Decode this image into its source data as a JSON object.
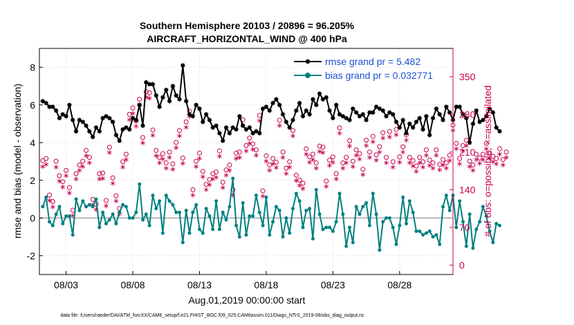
{
  "chart_data": {
    "type": "line",
    "title": "Southern Hemisphere 20103 / 20896 = 96.205%",
    "subtitle": "AIRCRAFT_HORIZONTAL_WIND @ 400 hPa",
    "xlabel": "Aug.01,2019 00:00:00 start",
    "ylabel": "rmse and bias (model - observation)",
    "y2label": "# of obs: o=possible; ×=assimilated",
    "footnote": "data file: /Users/raeder/DAI/ATM_forcXX/CAM6_setup/f.e21.FHIST_BGC.f09_025.CAM6assim.011/Diags_NTrS_2019-08/obs_diag_output.nc",
    "xlim": [
      1,
      32
    ],
    "xticks": [
      {
        "day": 3,
        "label": "08/03"
      },
      {
        "day": 8,
        "label": "08/08"
      },
      {
        "day": 13,
        "label": "08/13"
      },
      {
        "day": 18,
        "label": "08/18"
      },
      {
        "day": 23,
        "label": "08/23"
      },
      {
        "day": 28,
        "label": "08/28"
      }
    ],
    "ylim": [
      -3,
      9
    ],
    "yticks": [
      -2,
      0,
      2,
      4,
      6,
      8
    ],
    "y2lim": [
      -17.5,
      402.5
    ],
    "y2ticks": [
      0,
      70,
      140,
      210,
      280,
      350
    ],
    "legend": {
      "position": "top-right"
    },
    "x_start_day": 1.25,
    "x_step_days": 0.25,
    "series": [
      {
        "name": "rmse grand pr = 5.482",
        "color": "#000000",
        "values": [
          6.2,
          6.1,
          5.9,
          5.9,
          5.7,
          5.3,
          5.5,
          5.4,
          6.0,
          5.2,
          4.6,
          5.2,
          5.1,
          4.9,
          4.6,
          4.3,
          4.8,
          4.6,
          5.3,
          5.4,
          5.3,
          5.1,
          4.4,
          4.1,
          4.7,
          4.8,
          4.7,
          5.3,
          5.2,
          6.0,
          4.9,
          7.2,
          7.1,
          7.1,
          6.5,
          5.9,
          6.4,
          6.8,
          6.2,
          7.0,
          6.5,
          6.3,
          8.1,
          6.2,
          5.5,
          5.4,
          6.0,
          5.8,
          5.1,
          5.5,
          5.2,
          4.8,
          4.9,
          4.5,
          4.1,
          4.8,
          4.5,
          4.8,
          4.7,
          5.4,
          4.9,
          4.7,
          4.8,
          4.5,
          4.6,
          4.5,
          5.8,
          5.9,
          5.7,
          6.1,
          6.3,
          6.0,
          5.5,
          5.1,
          4.8,
          5.2,
          5.7,
          6.1,
          5.4,
          5.7,
          5.5,
          6.3,
          6.0,
          6.6,
          6.3,
          6.4,
          5.7,
          5.3,
          6.0,
          5.5,
          5.4,
          5.3,
          5.2,
          5.8,
          5.6,
          5.4,
          5.5,
          5.2,
          5.6,
          5.6,
          5.9,
          5.8,
          5.7,
          5.4,
          5.6,
          5.5,
          5.1,
          4.8,
          5.2,
          4.5,
          5.0,
          4.8,
          5.1,
          5.3,
          4.7,
          5.4,
          4.4,
          5.3,
          5.8,
          5.5,
          5.2,
          5.9,
          5.6,
          5.2,
          5.9,
          5.9,
          5.5,
          5.3,
          4.0,
          5.0,
          5.7,
          5.1,
          5.2,
          5.4,
          5.8,
          5.6,
          4.8,
          4.6
        ]
      },
      {
        "name": "bias grand pr = 0.032771",
        "color": "#008080",
        "values": [
          0.6,
          1.1,
          -0.2,
          -0.4,
          0.2,
          0.6,
          -0.3,
          0.1,
          0.1,
          -0.9,
          1.0,
          0.4,
          0.9,
          0.6,
          0.7,
          0.6,
          1.0,
          -0.5,
          0.3,
          -0.3,
          -0.1,
          0.2,
          -0.3,
          0.3,
          0.7,
          0.6,
          0.0,
          0.0,
          0.3,
          1.8,
          -0.1,
          0.2,
          -0.4,
          1.2,
          0.5,
          0.9,
          -0.8,
          1.2,
          0.9,
          0.7,
          0.3,
          0.3,
          -1.3,
          0.4,
          -0.8,
          0.3,
          0.7,
          -0.6,
          -0.8,
          0.5,
          0.1,
          -0.6,
          0.9,
          -0.6,
          0.3,
          -0.1,
          0.6,
          2.1,
          -0.4,
          -1.0,
          0.8,
          -0.9,
          0.1,
          0.1,
          1.2,
          0.3,
          -0.4,
          1.1,
          -0.9,
          -0.2,
          0.6,
          0.4,
          -1.0,
          0.0,
          -0.8,
          0.5,
          1.3,
          0.9,
          -0.5,
          0.4,
          0.5,
          -1.1,
          1.5,
          0.2,
          -0.6,
          -0.5,
          -0.5,
          -0.7,
          -0.2,
          1.3,
          0.2,
          -1.5,
          -0.5,
          -1.3,
          0.6,
          0.2,
          0.6,
          0.8,
          -0.4,
          1.3,
          0.2,
          -1.7,
          -0.2,
          0.0,
          0.0,
          -0.5,
          -1.4,
          -0.4,
          1.1,
          -0.3,
          0.9,
          0.3,
          -0.7,
          -0.7,
          -0.9,
          -0.8,
          -0.7,
          -1.0,
          -0.9,
          -1.4,
          0.6,
          1.2,
          0.4,
          1.2,
          -0.5,
          0.9,
          -0.2,
          -1.5,
          0.2,
          -1.6,
          -0.6,
          -0.2,
          0.6,
          0.1,
          -0.7,
          -1.3,
          -0.3,
          -0.4
        ]
      },
      {
        "name": "possible",
        "color": "#c8004f",
        "marker": "circle",
        "axis": "right",
        "values": [
          194,
          198,
          130,
          118,
          193,
          166,
          155,
          176,
          144,
          102,
          170,
          186,
          193,
          213,
          200,
          122,
          113,
          170,
          171,
          120,
          219,
          162,
          129,
          105,
          192,
          206,
          280,
          292,
          268,
          308,
          237,
          322,
          320,
          251,
          213,
          200,
          207,
          190,
          210,
          188,
          228,
          250,
          199,
          266,
          286,
          140,
          193,
          208,
          174,
          150,
          159,
          170,
          173,
          212,
          154,
          177,
          186,
          140,
          208,
          210,
          270,
          222,
          236,
          225,
          214,
          278,
          138,
          203,
          186,
          198,
          191,
          269,
          210,
          180,
          192,
          250,
          167,
          158,
          152,
          216,
          201,
          206,
          190,
          221,
          219,
          156,
          195,
          201,
          170,
          255,
          190,
          200,
          231,
          193,
          214,
          207,
          178,
          232,
          210,
          239,
          205,
          220,
          246,
          200,
          248,
          192,
          252,
          201,
          220,
          242,
          200,
          194,
          184,
          200,
          192,
          214,
          195,
          190,
          214,
          187,
          196,
          190,
          204,
          260,
          226,
          198,
          222,
          232,
          193,
          186,
          206,
          199,
          206,
          226,
          208,
          202,
          198,
          216,
          196,
          210
        ]
      },
      {
        "name": "assimilated",
        "color": "#c8004f",
        "marker": "asterisk",
        "axis": "right",
        "values": [
          183,
          187,
          120,
          108,
          182,
          156,
          145,
          166,
          134,
          92,
          160,
          176,
          183,
          203,
          190,
          112,
          103,
          160,
          161,
          110,
          209,
          152,
          119,
          95,
          182,
          196,
          270,
          282,
          258,
          298,
          227,
          312,
          310,
          241,
          203,
          190,
          197,
          180,
          200,
          178,
          218,
          240,
          189,
          256,
          276,
          130,
          183,
          198,
          164,
          140,
          149,
          160,
          163,
          202,
          144,
          167,
          176,
          130,
          198,
          200,
          260,
          212,
          226,
          215,
          204,
          268,
          128,
          193,
          176,
          188,
          181,
          259,
          200,
          170,
          182,
          240,
          157,
          148,
          142,
          206,
          191,
          196,
          180,
          211,
          209,
          146,
          185,
          191,
          160,
          245,
          180,
          190,
          221,
          183,
          204,
          197,
          168,
          222,
          200,
          229,
          195,
          210,
          236,
          190,
          238,
          182,
          242,
          191,
          210,
          232,
          190,
          184,
          174,
          190,
          182,
          204,
          185,
          180,
          204,
          177,
          186,
          180,
          194,
          250,
          216,
          188,
          212,
          222,
          183,
          176,
          196,
          189,
          196,
          216,
          198,
          192,
          188,
          206,
          186,
          200
        ]
      }
    ]
  }
}
